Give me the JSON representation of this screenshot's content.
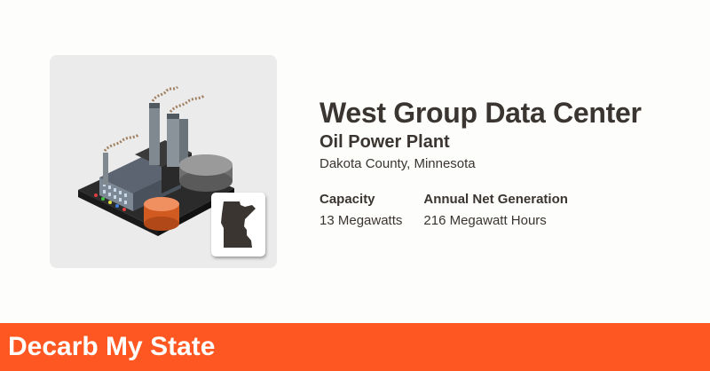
{
  "plant": {
    "name": "West Group Data Center",
    "type": "Oil Power Plant",
    "location": "Dakota County, Minnesota"
  },
  "stats": {
    "capacity_label": "Capacity",
    "capacity_value": "13 Megawatts",
    "generation_label": "Annual Net Generation",
    "generation_value": "216 Megawatt Hours"
  },
  "footer": {
    "brand": "Decarb My State"
  },
  "icons": {
    "plant": "oil-power-plant-icon",
    "state": "minnesota-state-icon"
  },
  "colors": {
    "accent": "#fe5722",
    "text": "#3a3530",
    "card": "#ebebeb",
    "state_fill": "#3a3530"
  }
}
